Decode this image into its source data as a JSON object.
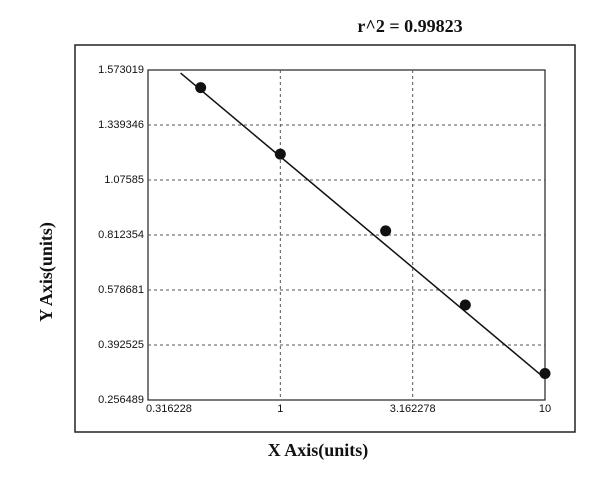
{
  "chart_data": {
    "type": "scatter",
    "title": "r^2 = 0.99823",
    "x_label": "X Axis(units)",
    "y_label": "Y Axis(units)",
    "x_scale": "log",
    "xlim": [
      0.316228,
      10
    ],
    "xticks": [
      0.316228,
      1,
      3.162278,
      10
    ],
    "ylim": [
      0.256489,
      1.573019
    ],
    "yticks": [
      0.256489,
      0.392525,
      0.578681,
      0.812354,
      1.07585,
      1.339346,
      1.573019
    ],
    "grid": true,
    "color": "#111111",
    "x": [
      0.5,
      1,
      2.5,
      5,
      10
    ],
    "values": [
      1.498,
      1.2,
      0.832,
      0.528,
      0.322
    ],
    "fit_line": {
      "x": [
        0.42,
        10
      ],
      "values": [
        1.56,
        0.31
      ]
    }
  }
}
